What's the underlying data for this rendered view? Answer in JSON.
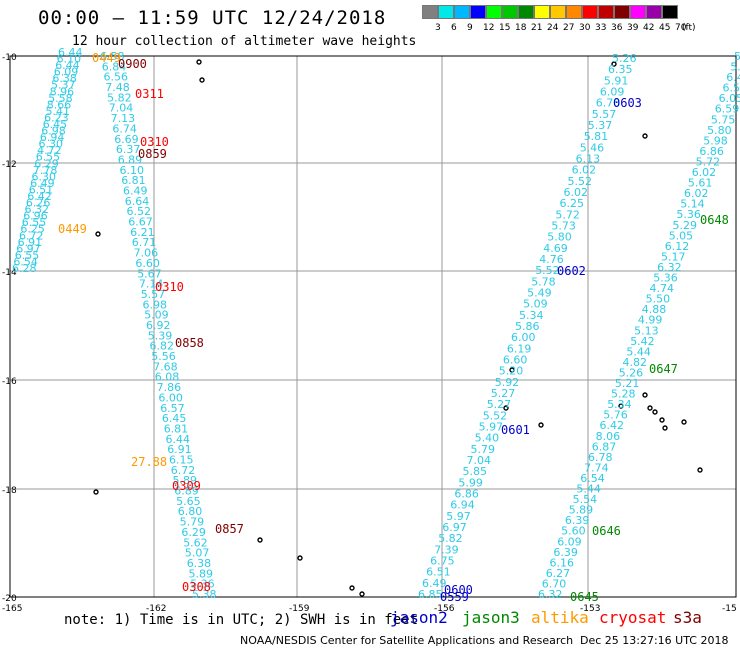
{
  "header": {
    "title": "00:00 – 11:59 UTC 12/24/2018",
    "subtitle": "12 hour collection of altimeter wave heights"
  },
  "legend": {
    "unit": "(ft)",
    "colors": [
      "#808080",
      "#00e8e8",
      "#00b8ff",
      "#0000ff",
      "#00ff00",
      "#00c800",
      "#008800",
      "#ffff00",
      "#ffc800",
      "#ff8800",
      "#ff0000",
      "#c00000",
      "#800000",
      "#ff00ff",
      "#9900aa",
      "#000000"
    ],
    "labels": [
      "3",
      "6",
      "9",
      "12",
      "15",
      "18",
      "21",
      "24",
      "27",
      "30",
      "33",
      "36",
      "39",
      "42",
      "45",
      "70"
    ]
  },
  "map": {
    "lon_ticks": [
      "-165",
      "-162",
      "-159",
      "-156",
      "-153",
      "-15"
    ],
    "lat_ticks": [
      "-10",
      "-12",
      "-14",
      "-16",
      "-18",
      "-20"
    ],
    "wave_color": "#2ecbe6",
    "tracks": [
      {
        "satellite": "cryosat",
        "values": [
          "6.44",
          "6.10",
          "6.44",
          "6.09",
          "6.38",
          "5.37",
          "8.96",
          "5.58",
          "8.66",
          "5.41",
          "6.23",
          "6.45",
          "6.98",
          "6.94",
          "6.30",
          "4.72",
          "6.55",
          "6.29",
          "7.78",
          "6.30",
          "6.49",
          "6.51",
          "6.42",
          "6.26",
          "6.32",
          "6.96",
          "6.55",
          "6.25",
          "6.72",
          "6.91",
          "6.97",
          "6.55",
          "6.54",
          "6.28"
        ]
      },
      {
        "satellite": "cryosat",
        "values": [
          "6.58",
          "6.84",
          "6.56",
          "7.48",
          "5.82",
          "7.04",
          "7.13",
          "6.74",
          "6.69",
          "6.37",
          "6.89",
          "6.10",
          "6.81",
          "6.49",
          "6.64",
          "6.52",
          "6.67",
          "6.21",
          "6.71",
          "7.06",
          "6.60",
          "5.67",
          "7.14",
          "5.57",
          "6.98",
          "5.09",
          "6.92",
          "5.39",
          "6.82",
          "5.56",
          "7.68",
          "6.08",
          "7.86",
          "6.00",
          "6.57",
          "6.45",
          "6.81",
          "6.44",
          "6.91",
          "6.15",
          "6.72",
          "5.89",
          "6.89",
          "5.65",
          "6.80",
          "5.79",
          "6.29",
          "5.62",
          "5.07",
          "6.38",
          "5.89",
          "5.36",
          "5.38"
        ]
      },
      {
        "satellite": "jason2",
        "values": [
          "6.85",
          "6.49",
          "6.51",
          "6.75",
          "7.39",
          "5.82",
          "6.97",
          "5.97",
          "6.94",
          "6.86",
          "5.99",
          "5.85",
          "7.04",
          "5.79",
          "5.40",
          "5.97",
          "5.52",
          "5.27",
          "5.27",
          "5.92",
          "5.20",
          "6.60",
          "6.19",
          "6.00",
          "5.86",
          "5.34",
          "5.09",
          "5.49",
          "5.78",
          "5.52",
          "4.76",
          "4.69",
          "5.80",
          "5.73",
          "5.72",
          "6.25",
          "6.02",
          "5.52",
          "6.02",
          "6.13",
          "5.46",
          "5.81",
          "5.37",
          "5.57",
          "6.78",
          "6.09",
          "5.91",
          "6.35",
          "5.26"
        ]
      },
      {
        "satellite": "jason3",
        "values": [
          "6.32",
          "6.70",
          "6.27",
          "6.16",
          "6.39",
          "6.09",
          "5.60",
          "6.39",
          "5.89",
          "5.54",
          "5.44",
          "6.54",
          "7.74",
          "6.78",
          "6.87",
          "8.06",
          "6.42",
          "5.76",
          "5.34",
          "5.28",
          "5.21",
          "5.26",
          "4.82",
          "5.44",
          "5.42",
          "5.13",
          "4.99",
          "4.88",
          "5.50",
          "4.74",
          "5.36",
          "6.32",
          "5.17",
          "6.12",
          "5.05",
          "5.29",
          "5.36",
          "5.14",
          "6.02",
          "5.61",
          "6.02",
          "5.72",
          "6.86",
          "5.98",
          "5.80",
          "5.75",
          "6.59",
          "6.05",
          "6.55",
          "6.43",
          "5.86",
          "5.80"
        ]
      }
    ],
    "passes": [
      {
        "text": "0449",
        "color": "#ff9900"
      },
      {
        "text": "0900",
        "color": "#800000"
      },
      {
        "text": "0311",
        "color": "#ff0000"
      },
      {
        "text": "0310",
        "color": "#ff0000"
      },
      {
        "text": "0859",
        "color": "#800000"
      },
      {
        "text": "0449",
        "color": "#ff9900"
      },
      {
        "text": "0310",
        "color": "#ff0000"
      },
      {
        "text": "0858",
        "color": "#800000"
      },
      {
        "text": "27.88",
        "color": "#ff9900"
      },
      {
        "text": "0309",
        "color": "#ff0000"
      },
      {
        "text": "0857",
        "color": "#800000"
      },
      {
        "text": "0308",
        "color": "#ff0000"
      },
      {
        "text": "0603",
        "color": "#0000cc"
      },
      {
        "text": "0602",
        "color": "#0000cc"
      },
      {
        "text": "0601",
        "color": "#0000cc"
      },
      {
        "text": "0600",
        "color": "#0000cc"
      },
      {
        "text": "0559",
        "color": "#0000cc"
      },
      {
        "text": "0648",
        "color": "#008800"
      },
      {
        "text": "0647",
        "color": "#008800"
      },
      {
        "text": "0646",
        "color": "#008800"
      },
      {
        "text": "0645",
        "color": "#008800"
      }
    ]
  },
  "footer": {
    "note": "note: 1) Time is in UTC; 2) SWH is in feet",
    "satellites": [
      {
        "name": "jason2",
        "color": "#0000cc"
      },
      {
        "name": "jason3",
        "color": "#008800"
      },
      {
        "name": "altika",
        "color": "#ff9900"
      },
      {
        "name": "cryosat",
        "color": "#ff0000"
      },
      {
        "name": "s3a",
        "color": "#800000"
      }
    ],
    "credit": "NOAA/NESDIS Center for Satellite Applications and Research",
    "timestamp": "Dec 25 13:27:16 UTC 2018"
  }
}
